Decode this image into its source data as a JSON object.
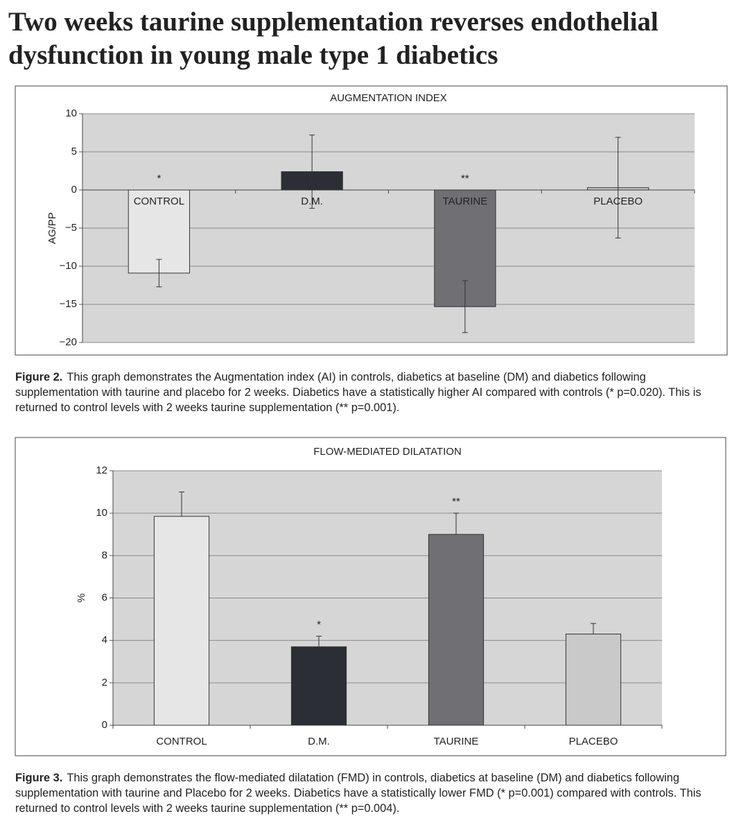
{
  "header": {
    "title": "Two weeks taurine supplementation reverses endothelial dysfunction in young male type 1 diabetics"
  },
  "chart_data": [
    {
      "type": "bar",
      "title": "AUGMENTATION INDEX",
      "y_label": "AG/PP",
      "categories": [
        "CONTROL",
        "D.M.",
        "TAURINE",
        "PLACEBO"
      ],
      "values": [
        -10.9,
        2.4,
        -15.3,
        0.3
      ],
      "errors": [
        1.8,
        4.8,
        3.4,
        6.6
      ],
      "error_bars": "both",
      "colors": [
        "#e6e6e6",
        "#2b2e34",
        "#6f6f74",
        "#c9c9c9"
      ],
      "annotations": [
        "*",
        null,
        "**",
        null
      ],
      "ylim": [
        -20,
        10
      ],
      "yticks": [
        {
          "value": -20,
          "label": "−20"
        },
        {
          "value": -15,
          "label": "−15"
        },
        {
          "value": -10,
          "label": "−10"
        },
        {
          "value": -5,
          "label": "−5"
        },
        0,
        5,
        10
      ],
      "grid": true
    },
    {
      "type": "bar",
      "title": "FLOW-MEDIATED DILATATION",
      "y_label": "%",
      "categories": [
        "CONTROL",
        "D.M.",
        "TAURINE",
        "PLACEBO"
      ],
      "values": [
        9.85,
        3.7,
        9.0,
        4.3
      ],
      "errors": [
        1.15,
        0.5,
        1.0,
        0.5
      ],
      "error_bars": "upper",
      "colors": [
        "#e6e6e6",
        "#2b2e34",
        "#6f6f74",
        "#c9c9c9"
      ],
      "annotations": [
        null,
        "*",
        "**",
        null
      ],
      "ylim": [
        0,
        12
      ],
      "yticks": [
        0,
        2,
        4,
        6,
        8,
        10,
        12
      ],
      "grid": true
    }
  ],
  "captions": [
    {
      "label": "Figure 2.",
      "text": "This graph demonstrates the Augmentation index (AI) in controls, diabetics at baseline (DM) and diabetics following supplementation with taurine and placebo for 2 weeks. Diabetics have a statistically higher AI compared with controls (* p=0.020). This is returned to control levels with 2 weeks taurine supplementation (** p=0.001)."
    },
    {
      "label": "Figure 3.",
      "text": "This graph demonstrates the flow-mediated dilatation (FMD) in controls, diabetics at baseline (DM) and diabetics following supplementation with taurine and Placebo for 2 weeks. Diabetics have a statistically lower FMD (* p=0.001) compared with controls. This returned to control levels with 2 weeks taurine supplementation (** p=0.004)."
    }
  ]
}
